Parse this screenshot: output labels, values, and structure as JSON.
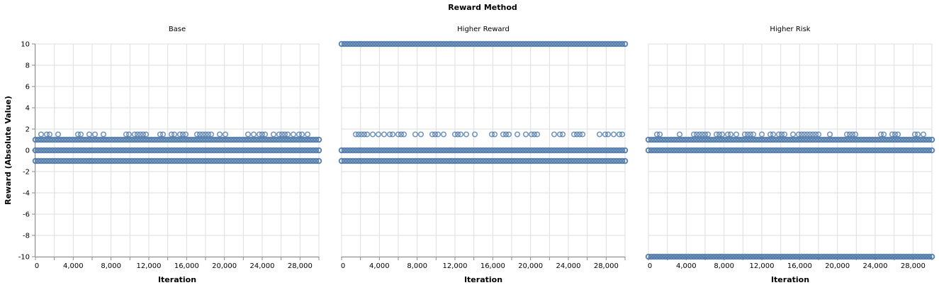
{
  "figure": {
    "title": "Reward Method"
  },
  "chart_data": {
    "type": "scatter",
    "title": "Reward Method",
    "xlabel": "Iteration",
    "ylabel": "Reward (Absolute Value)",
    "xlim": [
      0,
      30000
    ],
    "ylim": [
      -10,
      10
    ],
    "x_ticks": [
      0,
      4000,
      8000,
      12000,
      16000,
      20000,
      24000,
      28000
    ],
    "x_tick_labels": [
      "0",
      "4,000",
      "8,000",
      "12,000",
      "16,000",
      "20,000",
      "24,000",
      "28,000"
    ],
    "y_ticks": [
      -10,
      -8,
      -6,
      -4,
      -2,
      0,
      2,
      4,
      6,
      8,
      10
    ],
    "y_tick_labels": [
      "-10",
      "-8",
      "-6",
      "-4",
      "-2",
      "0",
      "2",
      "4",
      "6",
      "8",
      "10"
    ],
    "grid": true,
    "marker": "open-circle",
    "color": "#4c78a8",
    "facets": [
      {
        "name": "Base",
        "reward_levels": [
          {
            "y": 1.5,
            "density": "sparse"
          },
          {
            "y": 1,
            "density": "dense"
          },
          {
            "y": 0,
            "density": "dense"
          },
          {
            "y": -1,
            "density": "dense"
          }
        ]
      },
      {
        "name": "Higher Reward",
        "reward_levels": [
          {
            "y": 10,
            "density": "dense"
          },
          {
            "y": 1.5,
            "density": "sparse"
          },
          {
            "y": 0,
            "density": "dense"
          },
          {
            "y": -1,
            "density": "dense"
          }
        ]
      },
      {
        "name": "Higher Risk",
        "reward_levels": [
          {
            "y": 1.5,
            "density": "sparse"
          },
          {
            "y": 1,
            "density": "dense"
          },
          {
            "y": 0,
            "density": "dense"
          },
          {
            "y": -10,
            "density": "dense"
          }
        ]
      }
    ]
  }
}
